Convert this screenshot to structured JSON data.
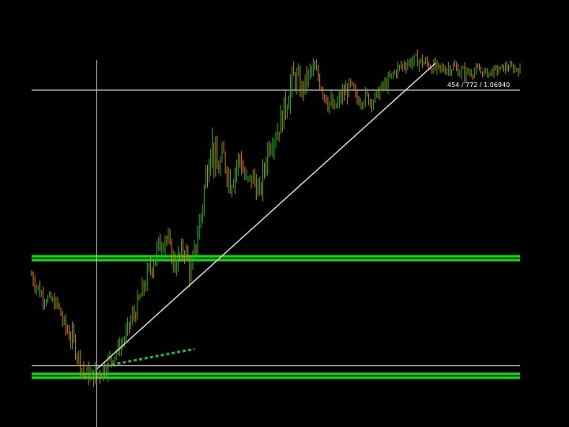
{
  "chart": {
    "crosshair_readout": "454 / 772 / 1.06940"
  },
  "colors": {
    "background": "#000000",
    "up_candle": "#22b322",
    "down_candle": "#e07a20",
    "level_line": "#c8c8c8",
    "zone_line": "#1fd01f",
    "trendline": "#d8d8d8",
    "dashed_trend": "#2bb34a",
    "crosshair": "#c8c8c8",
    "readout_text": "#ffffff"
  },
  "chart_data": {
    "type": "line",
    "title": "",
    "xlabel": "",
    "ylabel": "",
    "x_unit": "bar index",
    "xlim": [
      0,
      150
    ],
    "ylim": [
      0,
      100
    ],
    "grid": false,
    "legend": "none",
    "series": [
      {
        "style": "candlestick",
        "x": [
          0,
          3,
          5,
          8,
          10,
          13,
          16,
          19,
          22,
          25,
          28,
          30,
          33,
          36,
          39,
          41,
          44,
          47,
          49,
          52,
          55,
          57,
          59,
          61,
          64,
          66,
          68,
          70,
          73,
          75,
          77,
          79,
          81,
          83,
          86,
          88,
          91,
          93,
          95,
          98,
          100,
          102,
          105,
          107,
          109,
          112,
          115,
          118,
          121,
          125,
          129,
          133,
          137,
          140,
          143,
          146,
          150
        ],
        "close": [
          37,
          31,
          30,
          28,
          22,
          17,
          8,
          7,
          9,
          13,
          17,
          22,
          29,
          38,
          45,
          49,
          40,
          45,
          37,
          55,
          77,
          68,
          72,
          65,
          72,
          64,
          66,
          61,
          77,
          79,
          84,
          92,
          96,
          92,
          98,
          96,
          89,
          86,
          90,
          93,
          89,
          90,
          89,
          92,
          94,
          98,
          100,
          101,
          100,
          98,
          99,
          97,
          98,
          97,
          98,
          99,
          98
        ],
        "range": [
          4,
          4,
          3,
          3,
          4,
          5,
          4,
          4,
          5,
          4,
          3,
          4,
          5,
          5,
          6,
          5,
          5,
          5,
          6,
          7,
          8,
          7,
          6,
          7,
          6,
          6,
          5,
          5,
          7,
          5,
          6,
          8,
          6,
          5,
          5,
          5,
          5,
          4,
          4,
          4,
          3,
          4,
          3,
          3,
          3,
          3,
          3,
          3,
          3,
          3,
          3,
          3,
          2,
          2,
          2,
          2,
          2
        ]
      }
    ],
    "levels": [
      {
        "kind": "horizontal-line",
        "y": 92
      },
      {
        "kind": "horizontal-zone",
        "y": 42
      },
      {
        "kind": "horizontal-line",
        "y": 10
      },
      {
        "kind": "horizontal-zone",
        "y": 7
      }
    ],
    "trendlines": [
      {
        "kind": "solid",
        "from": [
          20,
          9
        ],
        "to": [
          124,
          100
        ]
      },
      {
        "kind": "dashed",
        "from": [
          23,
          10
        ],
        "to": [
          50,
          15
        ]
      }
    ],
    "crosshair": {
      "x": 20,
      "y": 9
    }
  }
}
